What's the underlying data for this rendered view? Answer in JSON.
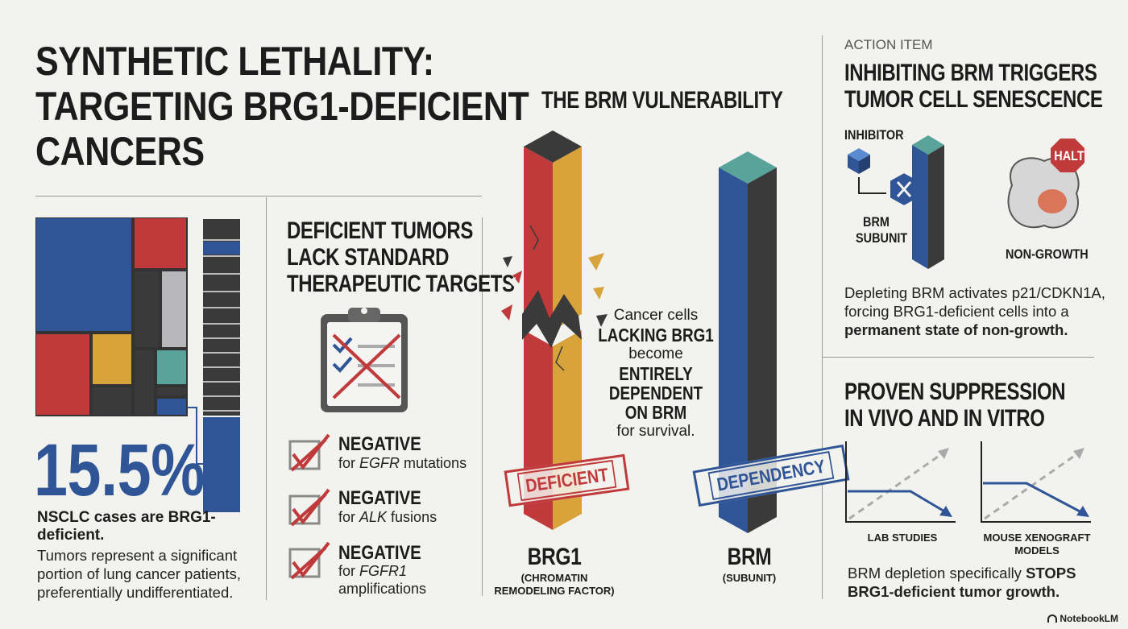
{
  "title": {
    "line1": "SYNTHETIC LETHALITY:",
    "line2": "TARGETING BRG1-DEFICIENT",
    "line3": "CANCERS"
  },
  "stat": {
    "value": "15.5%",
    "strong": "NSCLC cases are BRG1-deficient.",
    "desc": "Tumors represent a significant portion of lung cancer patients, preferentially undifferentiated."
  },
  "deficient": {
    "title_line1": "DEFICIENT TUMORS",
    "title_line2": "LACK STANDARD",
    "title_line3": "THERAPEUTIC TARGETS",
    "items": [
      {
        "title": "NEGATIVE",
        "prefix": "for ",
        "target": "EGFR",
        "suffix": " mutations"
      },
      {
        "title": "NEGATIVE",
        "prefix": "for ",
        "target": "ALK",
        "suffix": " fusions"
      },
      {
        "title": "NEGATIVE",
        "prefix": "for ",
        "target": "FGFR1",
        "suffix": "amplifications"
      }
    ]
  },
  "vulnerability": {
    "title": "THE BRM VULNERABILITY",
    "text1": "Cancer cells",
    "strong1": "LACKING BRG1",
    "text2": "become",
    "strong2a": "ENTIRELY",
    "strong2b": "DEPENDENT",
    "strong2c": "ON BRM",
    "text3": "for survival.",
    "stamp_left": "DEFICIENT",
    "stamp_right": "DEPENDENCY",
    "bar_left_name": "BRG1",
    "bar_left_sub1": "(CHROMATIN",
    "bar_left_sub2": "REMODELING FACTOR)",
    "bar_right_name": "BRM",
    "bar_right_sub": "(SUBUNIT)"
  },
  "action": {
    "kicker": "ACTION ITEM",
    "title_line1": "INHIBITING BRM TRIGGERS",
    "title_line2": "TUMOR CELL SENESCENCE",
    "inhibitor_label": "INHIBITOR",
    "subunit_label1": "BRM",
    "subunit_label2": "SUBUNIT",
    "halt_label": "HALT",
    "nongrowth_label": "NON-GROWTH",
    "desc1": "Depleting BRM activates p21/CDKN1A,",
    "desc2": "forcing BRG1-deficient cells into a",
    "desc3": "permanent state of non-growth."
  },
  "proven": {
    "title_line1": "PROVEN SUPPRESSION",
    "title_line2": "IN VIVO AND IN VITRO",
    "chart1_label": "LAB STUDIES",
    "chart2_label1": "MOUSE XENOGRAFT",
    "chart2_label2": "MODELS",
    "desc_start": "BRM depletion specifically ",
    "desc_strong": "STOPS",
    "desc_end": "BRG1-deficient tumor growth."
  },
  "brand": "NotebookLM",
  "colors": {
    "blue": "#2f5597",
    "red": "#c0393b",
    "gold": "#d9a33b",
    "teal": "#5aa39a",
    "dark": "#3a3a3a",
    "gray": "#b7b7b9"
  }
}
